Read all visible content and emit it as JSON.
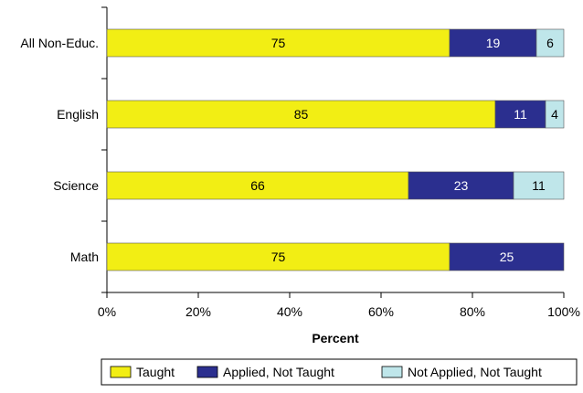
{
  "chart_data": {
    "type": "bar",
    "orientation": "horizontal",
    "stacked": true,
    "categories": [
      "All Non-Educ.",
      "English",
      "Science",
      "Math"
    ],
    "series": [
      {
        "name": "Taught",
        "values": [
          75,
          85,
          66,
          75
        ],
        "color": "#f2ee14",
        "label_color": "#000000"
      },
      {
        "name": "Applied, Not Taught",
        "values": [
          19,
          11,
          23,
          25
        ],
        "color": "#2b2f8f",
        "label_color": "#ffffff"
      },
      {
        "name": "Not Applied, Not Taught",
        "values": [
          6,
          4,
          11,
          0
        ],
        "color": "#bfe6ea",
        "label_color": "#000000"
      }
    ],
    "xlabel": "Percent",
    "xlim": [
      0,
      100
    ],
    "xticks": [
      "0%",
      "20%",
      "40%",
      "60%",
      "80%",
      "100%"
    ],
    "legend_position": "bottom",
    "grid": false
  }
}
